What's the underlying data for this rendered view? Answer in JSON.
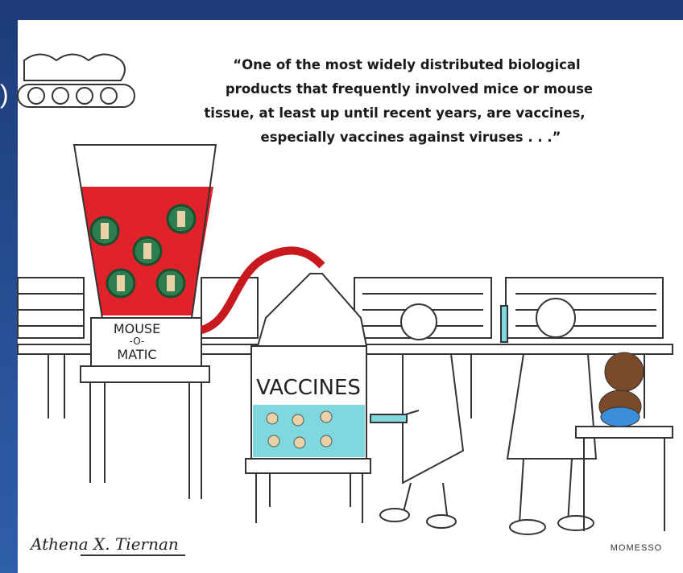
{
  "slide": {
    "fragment": ")"
  },
  "cartoon": {
    "quote": [
      "“One of the most widely distributed biological",
      "products that frequently involved mice or mouse",
      "tissue, at least up until recent years, are vaccines,",
      "especially vaccines against viruses . . .”"
    ],
    "machine_label": [
      "MOUSE",
      "-O-",
      "MATIC"
    ],
    "tank_label": "VACCINES",
    "signature": "Athena X. Tiernan",
    "artist_mark": "MOMESSO"
  }
}
